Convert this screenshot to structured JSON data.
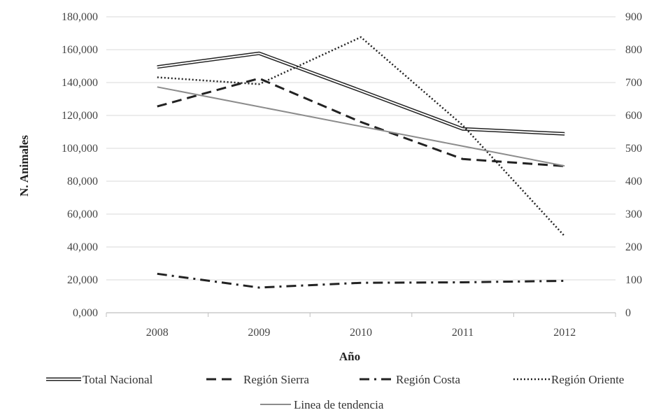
{
  "chart_data": {
    "type": "line",
    "title": "",
    "xlabel": "Año",
    "ylabel": "N. Animales",
    "categories": [
      "2008",
      "2009",
      "2010",
      "2011",
      "2012"
    ],
    "ylim_left": [
      0,
      180000
    ],
    "ylim_right": [
      0,
      900
    ],
    "yticks_left": [
      "0,000",
      "20,000",
      "40,000",
      "60,000",
      "80,000",
      "100,000",
      "120,000",
      "140,000",
      "160,000",
      "180,000"
    ],
    "yticks_right": [
      "0",
      "100",
      "200",
      "300",
      "400",
      "500",
      "600",
      "700",
      "800",
      "900"
    ],
    "grid": true,
    "legend_position": "bottom",
    "series": [
      {
        "name": "Total Nacional",
        "axis": "left",
        "style": "double",
        "values": [
          149500,
          157800,
          135000,
          111800,
          108800
        ]
      },
      {
        "name": "Región Sierra",
        "axis": "left",
        "style": "dash",
        "values": [
          125500,
          142500,
          116000,
          93500,
          89200
        ]
      },
      {
        "name": "Región Costa",
        "axis": "left",
        "style": "dashdot",
        "values": [
          23700,
          15300,
          18200,
          18500,
          19400
        ]
      },
      {
        "name": "Región Oriente",
        "axis": "right",
        "style": "dot",
        "values": [
          716,
          695,
          838,
          570,
          233
        ]
      },
      {
        "name": "Linea de tendencia",
        "axis": "left",
        "style": "trend",
        "values": [
          137300,
          125300,
          113300,
          101300,
          89300
        ]
      }
    ]
  },
  "colors": {
    "line": "#222222",
    "trend": "#8c8c8c",
    "grid": "#d9d9d9",
    "axis": "#bfbfbf"
  }
}
